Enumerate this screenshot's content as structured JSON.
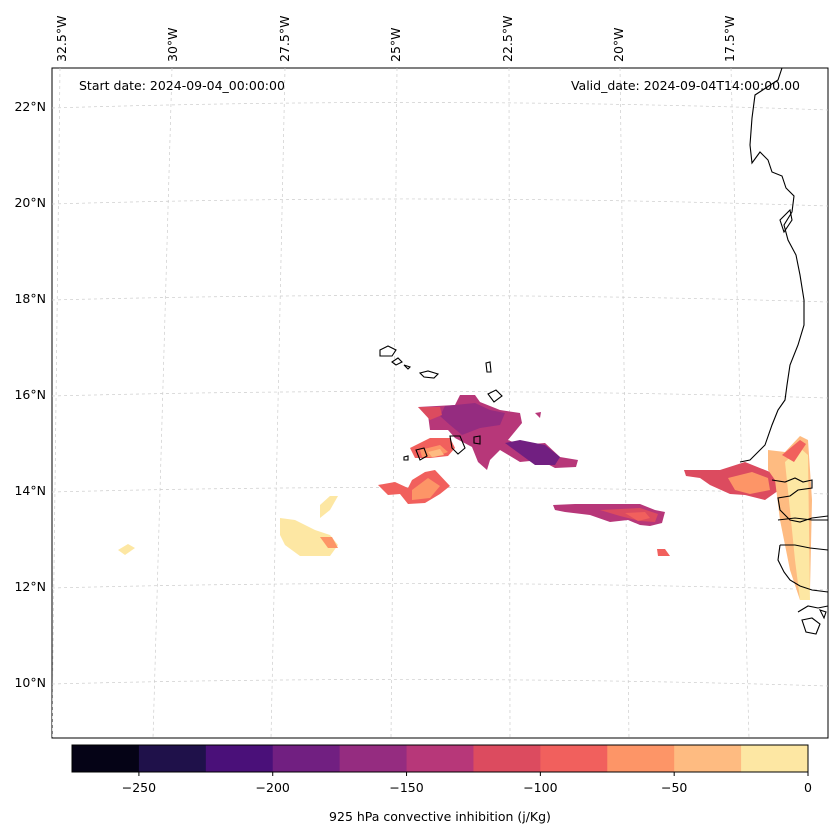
{
  "header": {
    "start_date": "Start date: 2024-09-04_00:00:00",
    "valid_date": "Valid_date: 2024-09-04T14:00:00.00"
  },
  "map": {
    "lon_labels": [
      "32.5°W",
      "30°W",
      "27.5°W",
      "25°W",
      "22.5°W",
      "20°W",
      "17.5°W"
    ],
    "lat_labels": [
      "22°N",
      "20°N",
      "18°N",
      "16°N",
      "14°N",
      "12°N",
      "10°N"
    ],
    "variable": "925 hPa convective inhibition",
    "features": [
      "Cabo Verde islands",
      "West African coastline (Mauritania, Senegal, Gambia, Guinea-Bissau)"
    ],
    "cin_patches": [
      {
        "region": "north of Santiago / Fogo, Cabo Verde",
        "range": [
          -175,
          -100
        ]
      },
      {
        "region": "east of Cabo Verde",
        "range": [
          -200,
          -150
        ]
      },
      {
        "region": "southwest of Cabo Verde",
        "range": [
          -100,
          -50
        ]
      },
      {
        "region": "offshore at 13°N",
        "range": [
          -175,
          -75
        ]
      },
      {
        "region": "Senegal / Gambia coast",
        "range": [
          -125,
          0
        ]
      },
      {
        "region": "far west near 32°W",
        "range": [
          -50,
          0
        ]
      }
    ]
  },
  "colorbar": {
    "title": "925 hPa convective inhibition (j/Kg)",
    "tick_labels": [
      "−250",
      "−200",
      "−150",
      "−100",
      "−50",
      "0"
    ],
    "colors": [
      "#050316",
      "#1f114a",
      "#4a1079",
      "#711f81",
      "#952c80",
      "#b73779",
      "#dc4b5f",
      "#f1605d",
      "#fd9567",
      "#febb81",
      "#fde7a3"
    ]
  }
}
